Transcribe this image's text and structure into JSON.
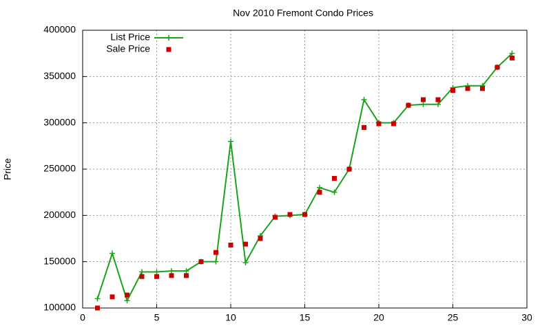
{
  "chart_data": {
    "type": "line",
    "title": "Nov 2010 Fremont Condo Prices",
    "y_label": "Price",
    "x": [
      1,
      2,
      3,
      4,
      5,
      6,
      7,
      8,
      9,
      10,
      11,
      12,
      13,
      14,
      15,
      16,
      17,
      18,
      19,
      20,
      21,
      22,
      23,
      24,
      25,
      26,
      27,
      28,
      29
    ],
    "series": [
      {
        "name": "List Price",
        "color": "#1aa31a",
        "style": "linespoints",
        "values": [
          110000,
          159000,
          108000,
          139000,
          139000,
          140000,
          140000,
          150000,
          150000,
          280000,
          149000,
          178000,
          199000,
          200000,
          201000,
          230000,
          225000,
          250000,
          325000,
          300000,
          300000,
          319000,
          320000,
          320000,
          338000,
          340000,
          340000,
          360000,
          375000
        ]
      },
      {
        "name": "Sale Price",
        "color": "#cc0000",
        "style": "points",
        "values": [
          100000,
          112000,
          114000,
          134000,
          134000,
          135000,
          135000,
          150000,
          160000,
          168000,
          169000,
          175000,
          198000,
          201000,
          201000,
          225000,
          240000,
          250000,
          295000,
          299000,
          299000,
          319000,
          325000,
          325000,
          335000,
          337000,
          337000,
          360000,
          370000
        ]
      }
    ],
    "xlim": [
      0,
      30
    ],
    "xticks": [
      0,
      5,
      10,
      15,
      20,
      25,
      30
    ],
    "ylim": [
      100000,
      400000
    ],
    "yticks": [
      100000,
      150000,
      200000,
      250000,
      300000,
      350000,
      400000
    ],
    "grid": true,
    "legend": "top-left"
  }
}
